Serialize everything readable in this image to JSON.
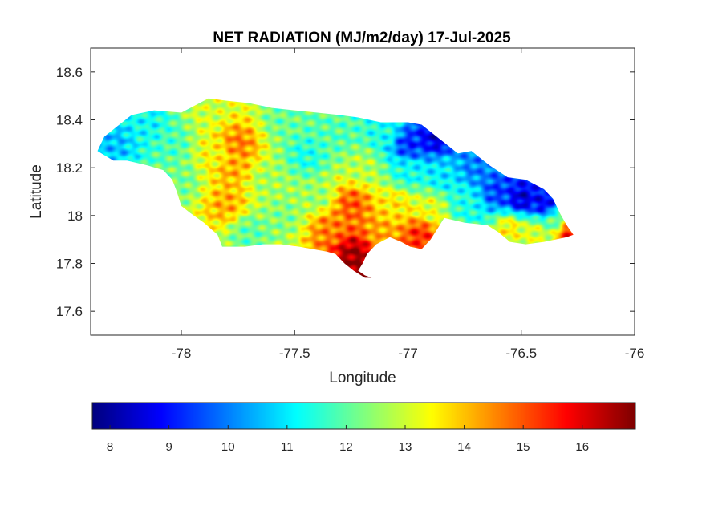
{
  "chart_data": {
    "type": "heatmap",
    "title": "NET RADIATION (MJ/m2/day) 17-Jul-2025",
    "xlabel": "Longitude",
    "ylabel": "Latitude",
    "xlim": [
      -78.4,
      -76.0
    ],
    "ylim": [
      17.5,
      18.7
    ],
    "xticks": [
      -78,
      -77.5,
      -77,
      -76.5,
      -76
    ],
    "xtick_labels": [
      "-78",
      "-77.5",
      "-77",
      "-76.5",
      "-76"
    ],
    "yticks": [
      17.6,
      17.8,
      18.0,
      18.2,
      18.4,
      18.6
    ],
    "ytick_labels": [
      "17.6",
      "17.8",
      "18",
      "18.2",
      "18.4",
      "18.6"
    ],
    "grid": false,
    "colormap": "jet",
    "colorbar": {
      "orientation": "horizontal",
      "position": "bottom",
      "clim": [
        7.7,
        16.9
      ],
      "ticks": [
        8,
        9,
        10,
        11,
        12,
        13,
        14,
        15,
        16
      ],
      "tick_labels": [
        "8",
        "9",
        "10",
        "11",
        "12",
        "13",
        "14",
        "15",
        "16"
      ]
    },
    "region_outline_lonlat": [
      [
        -78.37,
        18.27
      ],
      [
        -78.34,
        18.33
      ],
      [
        -78.3,
        18.36
      ],
      [
        -78.22,
        18.42
      ],
      [
        -78.12,
        18.44
      ],
      [
        -78.0,
        18.43
      ],
      [
        -77.92,
        18.47
      ],
      [
        -77.88,
        18.49
      ],
      [
        -77.8,
        18.48
      ],
      [
        -77.7,
        18.47
      ],
      [
        -77.6,
        18.45
      ],
      [
        -77.5,
        18.44
      ],
      [
        -77.4,
        18.43
      ],
      [
        -77.3,
        18.42
      ],
      [
        -77.22,
        18.41
      ],
      [
        -77.12,
        18.39
      ],
      [
        -77.0,
        18.39
      ],
      [
        -76.94,
        18.38
      ],
      [
        -76.86,
        18.32
      ],
      [
        -76.78,
        18.26
      ],
      [
        -76.72,
        18.27
      ],
      [
        -76.64,
        18.21
      ],
      [
        -76.56,
        18.16
      ],
      [
        -76.48,
        18.15
      ],
      [
        -76.4,
        18.11
      ],
      [
        -76.36,
        18.07
      ],
      [
        -76.33,
        18.01
      ],
      [
        -76.3,
        17.96
      ],
      [
        -76.27,
        17.92
      ],
      [
        -76.3,
        17.91
      ],
      [
        -76.4,
        17.89
      ],
      [
        -76.48,
        17.88
      ],
      [
        -76.55,
        17.89
      ],
      [
        -76.6,
        17.93
      ],
      [
        -76.65,
        17.96
      ],
      [
        -76.75,
        17.97
      ],
      [
        -76.84,
        17.99
      ],
      [
        -76.86,
        17.96
      ],
      [
        -76.9,
        17.9
      ],
      [
        -76.94,
        17.86
      ],
      [
        -76.99,
        17.87
      ],
      [
        -77.03,
        17.89
      ],
      [
        -77.08,
        17.91
      ],
      [
        -77.14,
        17.88
      ],
      [
        -77.18,
        17.84
      ],
      [
        -77.2,
        17.8
      ],
      [
        -77.22,
        17.77
      ],
      [
        -77.19,
        17.75
      ],
      [
        -77.16,
        17.74
      ],
      [
        -77.19,
        17.74
      ],
      [
        -77.24,
        17.77
      ],
      [
        -77.28,
        17.8
      ],
      [
        -77.32,
        17.84
      ],
      [
        -77.36,
        17.85
      ],
      [
        -77.42,
        17.86
      ],
      [
        -77.48,
        17.87
      ],
      [
        -77.56,
        17.88
      ],
      [
        -77.64,
        17.88
      ],
      [
        -77.72,
        17.87
      ],
      [
        -77.82,
        17.87
      ],
      [
        -77.84,
        17.92
      ],
      [
        -77.9,
        17.97
      ],
      [
        -77.96,
        18.01
      ],
      [
        -78.0,
        18.04
      ],
      [
        -78.02,
        18.1
      ],
      [
        -78.04,
        18.15
      ],
      [
        -78.08,
        18.19
      ],
      [
        -78.15,
        18.21
      ],
      [
        -78.24,
        18.23
      ],
      [
        -78.3,
        18.23
      ],
      [
        -78.37,
        18.27
      ]
    ],
    "value_anchors": [
      {
        "lon": -78.3,
        "lat": 18.3,
        "v": 10.6
      },
      {
        "lon": -78.15,
        "lat": 18.38,
        "v": 11.2
      },
      {
        "lon": -78.05,
        "lat": 18.3,
        "v": 11.8
      },
      {
        "lon": -78.0,
        "lat": 18.15,
        "v": 12.2
      },
      {
        "lon": -77.88,
        "lat": 18.45,
        "v": 13.0
      },
      {
        "lon": -77.85,
        "lat": 18.25,
        "v": 13.4
      },
      {
        "lon": -77.8,
        "lat": 18.05,
        "v": 14.2
      },
      {
        "lon": -77.75,
        "lat": 18.3,
        "v": 14.6
      },
      {
        "lon": -77.78,
        "lat": 18.2,
        "v": 14.2
      },
      {
        "lon": -77.7,
        "lat": 17.93,
        "v": 12.0
      },
      {
        "lon": -77.62,
        "lat": 18.15,
        "v": 12.6
      },
      {
        "lon": -77.55,
        "lat": 18.4,
        "v": 12.1
      },
      {
        "lon": -77.55,
        "lat": 18.0,
        "v": 12.3
      },
      {
        "lon": -77.45,
        "lat": 18.25,
        "v": 11.4
      },
      {
        "lon": -77.4,
        "lat": 18.08,
        "v": 12.5
      },
      {
        "lon": -77.35,
        "lat": 17.95,
        "v": 14.6
      },
      {
        "lon": -77.3,
        "lat": 18.35,
        "v": 11.9
      },
      {
        "lon": -77.25,
        "lat": 18.05,
        "v": 15.0
      },
      {
        "lon": -77.24,
        "lat": 17.84,
        "v": 16.6
      },
      {
        "lon": -77.2,
        "lat": 17.77,
        "v": 16.8
      },
      {
        "lon": -77.2,
        "lat": 18.2,
        "v": 12.8
      },
      {
        "lon": -77.12,
        "lat": 17.92,
        "v": 14.2
      },
      {
        "lon": -77.1,
        "lat": 18.35,
        "v": 11.4
      },
      {
        "lon": -77.05,
        "lat": 18.05,
        "v": 13.6
      },
      {
        "lon": -77.0,
        "lat": 18.3,
        "v": 9.2
      },
      {
        "lon": -77.0,
        "lat": 18.18,
        "v": 11.3
      },
      {
        "lon": -76.95,
        "lat": 17.92,
        "v": 15.4
      },
      {
        "lon": -76.9,
        "lat": 18.03,
        "v": 13.2
      },
      {
        "lon": -76.88,
        "lat": 18.33,
        "v": 8.5
      },
      {
        "lon": -76.85,
        "lat": 18.17,
        "v": 11.0
      },
      {
        "lon": -76.75,
        "lat": 18.05,
        "v": 11.4
      },
      {
        "lon": -76.7,
        "lat": 18.2,
        "v": 10.0
      },
      {
        "lon": -76.6,
        "lat": 18.1,
        "v": 9.4
      },
      {
        "lon": -76.55,
        "lat": 17.95,
        "v": 13.6
      },
      {
        "lon": -76.5,
        "lat": 18.07,
        "v": 8.4
      },
      {
        "lon": -76.45,
        "lat": 17.93,
        "v": 13.2
      },
      {
        "lon": -76.4,
        "lat": 18.05,
        "v": 8.7
      },
      {
        "lon": -76.35,
        "lat": 17.98,
        "v": 12.0
      },
      {
        "lon": -76.29,
        "lat": 17.93,
        "v": 15.6
      }
    ]
  }
}
